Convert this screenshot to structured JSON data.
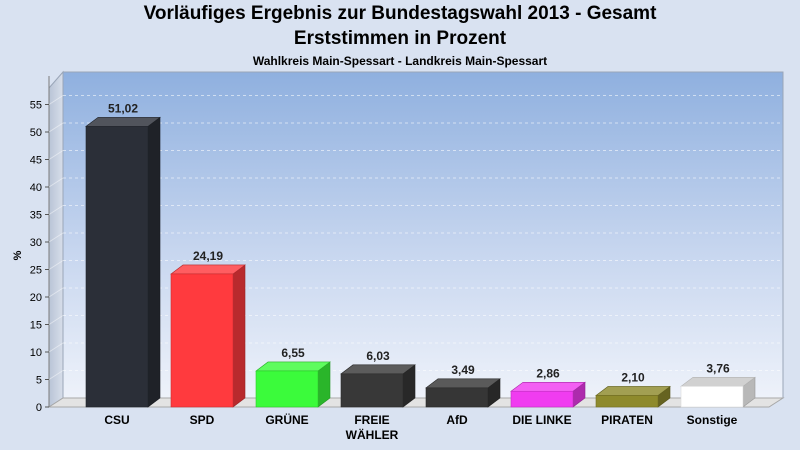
{
  "chart_data": {
    "type": "bar",
    "title": "Vorläufiges Ergebnis zur Bundestagswahl 2013 - Gesamt",
    "title2": "Erststimmen in Prozent",
    "subtitle": "Wahlkreis Main-Spessart - Landkreis Main-Spessart",
    "ylabel": "%",
    "ylim": [
      0,
      58
    ],
    "yticks": [
      0,
      5,
      10,
      15,
      20,
      25,
      30,
      35,
      40,
      45,
      50,
      55
    ],
    "categories": [
      [
        "CSU"
      ],
      [
        "SPD"
      ],
      [
        "GRÜNE"
      ],
      [
        "FREIE",
        "WÄHLER"
      ],
      [
        "AfD"
      ],
      [
        "DIE LINKE"
      ],
      [
        "PIRATEN"
      ],
      [
        "Sonstige"
      ]
    ],
    "values": [
      51.02,
      24.19,
      6.55,
      6.03,
      3.49,
      2.86,
      2.1,
      3.76
    ],
    "value_labels": [
      "51,02",
      "24,19",
      "6,55",
      "6,03",
      "3,49",
      "2,86",
      "2,10",
      "3,76"
    ],
    "colors": [
      "#2b2f38",
      "#ff3a3e",
      "#3bfb3b",
      "#383838",
      "#363636",
      "#f03cf0",
      "#8e8a2c",
      "#ffffff"
    ],
    "grid": true,
    "legend": "none"
  }
}
